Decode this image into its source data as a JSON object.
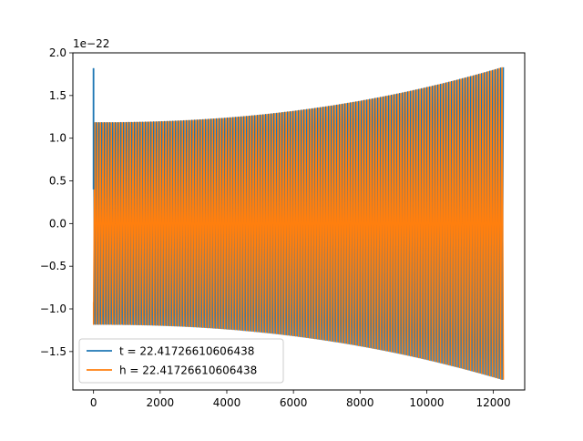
{
  "chart_data": {
    "type": "line",
    "title": "",
    "xlabel": "",
    "ylabel": "",
    "offset_label": "1e−22",
    "xlim": [
      -620,
      12940
    ],
    "ylim": [
      -1.95,
      2.0
    ],
    "x_ticks": [
      0,
      2000,
      4000,
      6000,
      8000,
      10000,
      12000
    ],
    "x_tick_labels": [
      "0",
      "2000",
      "4000",
      "6000",
      "8000",
      "10000",
      "12000"
    ],
    "y_ticks": [
      -1.5,
      -1.0,
      -0.5,
      0.0,
      0.5,
      1.0,
      1.5,
      2.0
    ],
    "y_tick_labels": [
      "−1.5",
      "−1.0",
      "−0.5",
      "0.0",
      "0.5",
      "1.0",
      "1.5",
      "2.0"
    ],
    "grid": false,
    "legend_position": "lower-left",
    "series": [
      {
        "name": "t = 22.41726610606438",
        "color": "#1f77b4",
        "x_range": [
          0,
          12300
        ],
        "start_spike": 1.82,
        "envelope_start": 1.18,
        "envelope_end": 1.83,
        "cycles": 150
      },
      {
        "name": "h = 22.41726610606438",
        "color": "#ff7f0e",
        "x_range": [
          0,
          12300
        ],
        "start_value": -0.92,
        "envelope_start": 1.18,
        "envelope_end": 1.83,
        "cycles": 150
      }
    ]
  }
}
